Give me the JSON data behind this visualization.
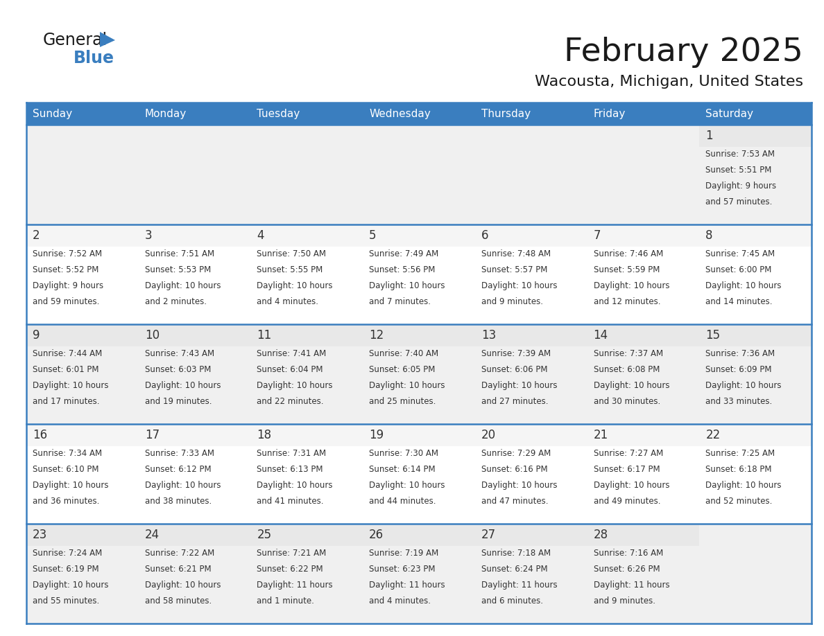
{
  "title": "February 2025",
  "subtitle": "Wacousta, Michigan, United States",
  "header_bg": "#3a7ebf",
  "header_text_color": "#ffffff",
  "cell_bg_even": "#f0f0f0",
  "cell_bg_odd": "#ffffff",
  "day_num_bg_even": "#e8e8e8",
  "day_num_bg_odd": "#f5f5f5",
  "border_color": "#3a7ebf",
  "text_color": "#333333",
  "day_headers": [
    "Sunday",
    "Monday",
    "Tuesday",
    "Wednesday",
    "Thursday",
    "Friday",
    "Saturday"
  ],
  "weeks": [
    [
      {
        "day": null,
        "sunrise": null,
        "sunset": null,
        "daylight_line1": null,
        "daylight_line2": null
      },
      {
        "day": null,
        "sunrise": null,
        "sunset": null,
        "daylight_line1": null,
        "daylight_line2": null
      },
      {
        "day": null,
        "sunrise": null,
        "sunset": null,
        "daylight_line1": null,
        "daylight_line2": null
      },
      {
        "day": null,
        "sunrise": null,
        "sunset": null,
        "daylight_line1": null,
        "daylight_line2": null
      },
      {
        "day": null,
        "sunrise": null,
        "sunset": null,
        "daylight_line1": null,
        "daylight_line2": null
      },
      {
        "day": null,
        "sunrise": null,
        "sunset": null,
        "daylight_line1": null,
        "daylight_line2": null
      },
      {
        "day": 1,
        "sunrise": "7:53 AM",
        "sunset": "5:51 PM",
        "daylight_line1": "Daylight: 9 hours",
        "daylight_line2": "and 57 minutes."
      }
    ],
    [
      {
        "day": 2,
        "sunrise": "7:52 AM",
        "sunset": "5:52 PM",
        "daylight_line1": "Daylight: 9 hours",
        "daylight_line2": "and 59 minutes."
      },
      {
        "day": 3,
        "sunrise": "7:51 AM",
        "sunset": "5:53 PM",
        "daylight_line1": "Daylight: 10 hours",
        "daylight_line2": "and 2 minutes."
      },
      {
        "day": 4,
        "sunrise": "7:50 AM",
        "sunset": "5:55 PM",
        "daylight_line1": "Daylight: 10 hours",
        "daylight_line2": "and 4 minutes."
      },
      {
        "day": 5,
        "sunrise": "7:49 AM",
        "sunset": "5:56 PM",
        "daylight_line1": "Daylight: 10 hours",
        "daylight_line2": "and 7 minutes."
      },
      {
        "day": 6,
        "sunrise": "7:48 AM",
        "sunset": "5:57 PM",
        "daylight_line1": "Daylight: 10 hours",
        "daylight_line2": "and 9 minutes."
      },
      {
        "day": 7,
        "sunrise": "7:46 AM",
        "sunset": "5:59 PM",
        "daylight_line1": "Daylight: 10 hours",
        "daylight_line2": "and 12 minutes."
      },
      {
        "day": 8,
        "sunrise": "7:45 AM",
        "sunset": "6:00 PM",
        "daylight_line1": "Daylight: 10 hours",
        "daylight_line2": "and 14 minutes."
      }
    ],
    [
      {
        "day": 9,
        "sunrise": "7:44 AM",
        "sunset": "6:01 PM",
        "daylight_line1": "Daylight: 10 hours",
        "daylight_line2": "and 17 minutes."
      },
      {
        "day": 10,
        "sunrise": "7:43 AM",
        "sunset": "6:03 PM",
        "daylight_line1": "Daylight: 10 hours",
        "daylight_line2": "and 19 minutes."
      },
      {
        "day": 11,
        "sunrise": "7:41 AM",
        "sunset": "6:04 PM",
        "daylight_line1": "Daylight: 10 hours",
        "daylight_line2": "and 22 minutes."
      },
      {
        "day": 12,
        "sunrise": "7:40 AM",
        "sunset": "6:05 PM",
        "daylight_line1": "Daylight: 10 hours",
        "daylight_line2": "and 25 minutes."
      },
      {
        "day": 13,
        "sunrise": "7:39 AM",
        "sunset": "6:06 PM",
        "daylight_line1": "Daylight: 10 hours",
        "daylight_line2": "and 27 minutes."
      },
      {
        "day": 14,
        "sunrise": "7:37 AM",
        "sunset": "6:08 PM",
        "daylight_line1": "Daylight: 10 hours",
        "daylight_line2": "and 30 minutes."
      },
      {
        "day": 15,
        "sunrise": "7:36 AM",
        "sunset": "6:09 PM",
        "daylight_line1": "Daylight: 10 hours",
        "daylight_line2": "and 33 minutes."
      }
    ],
    [
      {
        "day": 16,
        "sunrise": "7:34 AM",
        "sunset": "6:10 PM",
        "daylight_line1": "Daylight: 10 hours",
        "daylight_line2": "and 36 minutes."
      },
      {
        "day": 17,
        "sunrise": "7:33 AM",
        "sunset": "6:12 PM",
        "daylight_line1": "Daylight: 10 hours",
        "daylight_line2": "and 38 minutes."
      },
      {
        "day": 18,
        "sunrise": "7:31 AM",
        "sunset": "6:13 PM",
        "daylight_line1": "Daylight: 10 hours",
        "daylight_line2": "and 41 minutes."
      },
      {
        "day": 19,
        "sunrise": "7:30 AM",
        "sunset": "6:14 PM",
        "daylight_line1": "Daylight: 10 hours",
        "daylight_line2": "and 44 minutes."
      },
      {
        "day": 20,
        "sunrise": "7:29 AM",
        "sunset": "6:16 PM",
        "daylight_line1": "Daylight: 10 hours",
        "daylight_line2": "and 47 minutes."
      },
      {
        "day": 21,
        "sunrise": "7:27 AM",
        "sunset": "6:17 PM",
        "daylight_line1": "Daylight: 10 hours",
        "daylight_line2": "and 49 minutes."
      },
      {
        "day": 22,
        "sunrise": "7:25 AM",
        "sunset": "6:18 PM",
        "daylight_line1": "Daylight: 10 hours",
        "daylight_line2": "and 52 minutes."
      }
    ],
    [
      {
        "day": 23,
        "sunrise": "7:24 AM",
        "sunset": "6:19 PM",
        "daylight_line1": "Daylight: 10 hours",
        "daylight_line2": "and 55 minutes."
      },
      {
        "day": 24,
        "sunrise": "7:22 AM",
        "sunset": "6:21 PM",
        "daylight_line1": "Daylight: 10 hours",
        "daylight_line2": "and 58 minutes."
      },
      {
        "day": 25,
        "sunrise": "7:21 AM",
        "sunset": "6:22 PM",
        "daylight_line1": "Daylight: 11 hours",
        "daylight_line2": "and 1 minute."
      },
      {
        "day": 26,
        "sunrise": "7:19 AM",
        "sunset": "6:23 PM",
        "daylight_line1": "Daylight: 11 hours",
        "daylight_line2": "and 4 minutes."
      },
      {
        "day": 27,
        "sunrise": "7:18 AM",
        "sunset": "6:24 PM",
        "daylight_line1": "Daylight: 11 hours",
        "daylight_line2": "and 6 minutes."
      },
      {
        "day": 28,
        "sunrise": "7:16 AM",
        "sunset": "6:26 PM",
        "daylight_line1": "Daylight: 11 hours",
        "daylight_line2": "and 9 minutes."
      },
      {
        "day": null,
        "sunrise": null,
        "sunset": null,
        "daylight_line1": null,
        "daylight_line2": null
      }
    ]
  ]
}
